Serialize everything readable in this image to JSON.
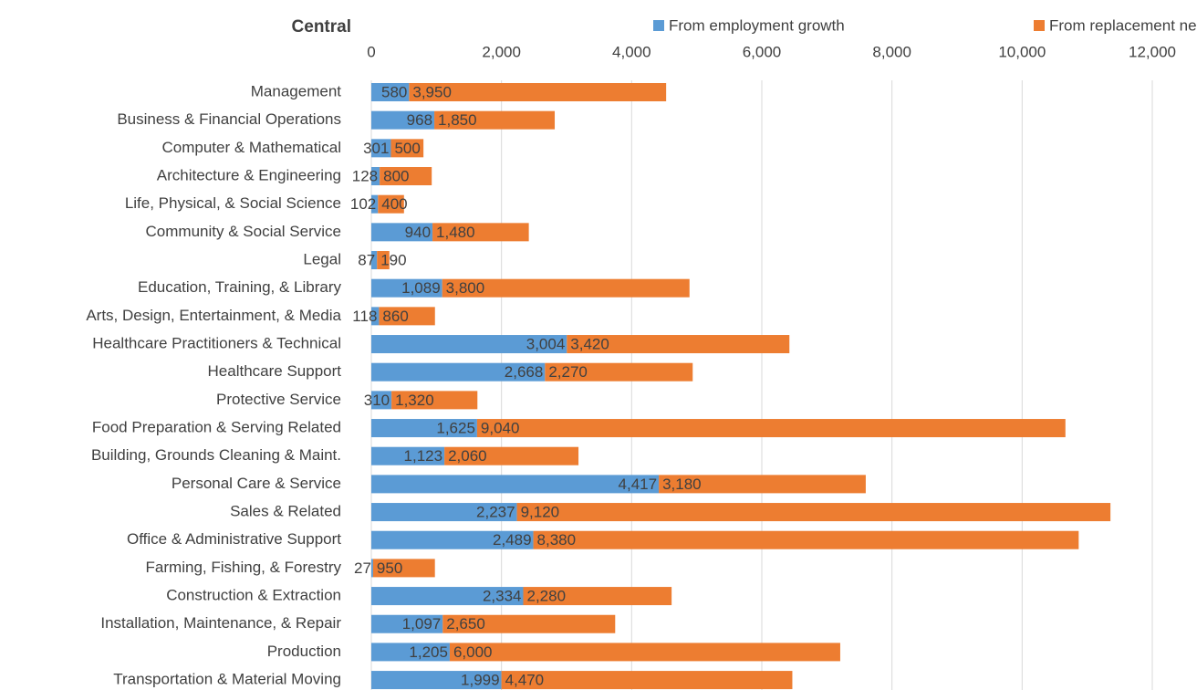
{
  "chart_data": {
    "type": "stacked_bar_horizontal",
    "title": "Central",
    "categories": [
      "Management",
      "Business & Financial Operations",
      "Computer & Mathematical",
      "Architecture & Engineering",
      "Life, Physical, & Social Science",
      "Community & Social Service",
      "Legal",
      "Education, Training, & Library",
      "Arts, Design, Entertainment, & Media",
      "Healthcare Practitioners & Technical",
      "Healthcare Support",
      "Protective Service",
      "Food Preparation & Serving Related",
      "Building, Grounds Cleaning & Maint.",
      "Personal Care & Service",
      "Sales & Related",
      "Office & Administrative Support",
      "Farming, Fishing, & Forestry",
      "Construction & Extraction",
      "Installation, Maintenance, & Repair",
      "Production",
      "Transportation & Material Moving"
    ],
    "series": [
      {
        "name": "From employment growth",
        "color": "#5b9bd5",
        "values": [
          580,
          968,
          301,
          128,
          102,
          940,
          87,
          1089,
          118,
          3004,
          2668,
          310,
          1625,
          1123,
          4417,
          2237,
          2489,
          27,
          2334,
          1097,
          1205,
          1999
        ],
        "value_labels": [
          "580",
          "968",
          "301",
          "128",
          "102",
          "940",
          "87",
          "1,089",
          "118",
          "3,004",
          "2,668",
          "310",
          "1,625",
          "1,123",
          "4,417",
          "2,237",
          "2,489",
          "27",
          "2,334",
          "1,097",
          "1,205",
          "1,999"
        ]
      },
      {
        "name": "From replacement needs",
        "color": "#ed7d31",
        "values": [
          3950,
          1850,
          500,
          800,
          400,
          1480,
          190,
          3800,
          860,
          3420,
          2270,
          1320,
          9040,
          2060,
          3180,
          9120,
          8380,
          950,
          2280,
          2650,
          6000,
          4470
        ],
        "value_labels": [
          "3,950",
          "1,850",
          "500",
          "800",
          "400",
          "1,480",
          "190",
          "3,800",
          "860",
          "3,420",
          "2,270",
          "1,320",
          "9,040",
          "2,060",
          "3,180",
          "9,120",
          "8,380",
          "950",
          "2,280",
          "2,650",
          "6,000",
          "4,470"
        ]
      }
    ],
    "xlim": [
      0,
      12000
    ],
    "xticks": [
      0,
      {
        "value": 2000,
        "label": "2,000"
      },
      {
        "value": 4000,
        "label": "4,000"
      },
      {
        "value": 6000,
        "label": "6,000"
      },
      {
        "value": 8000,
        "label": "8,000"
      },
      {
        "value": 10000,
        "label": "10,000"
      },
      {
        "value": 12000,
        "label": "12,000"
      }
    ],
    "grid": true,
    "legend": "top"
  }
}
